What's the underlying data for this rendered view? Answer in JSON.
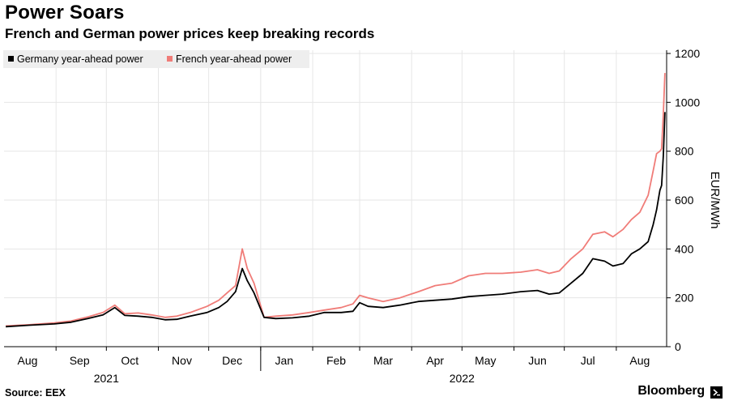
{
  "header": {
    "title": "Power Soars",
    "subtitle": "French and German power prices keep breaking records"
  },
  "footer": {
    "source": "Source: EEX",
    "brand": "Bloomberg"
  },
  "colors": {
    "germany": "#000000",
    "france": "#f07c78",
    "grid": "#e6e6e6",
    "legend_bg": "#eeeeee"
  },
  "chart_data": {
    "type": "line",
    "title": "Power Soars",
    "subtitle": "French and German power prices keep breaking records",
    "ylabel": "EUR/MWh",
    "y_axis_position": "right",
    "ylim": [
      0,
      1200
    ],
    "yticks": [
      0,
      200,
      400,
      600,
      800,
      1000,
      1200
    ],
    "xlim": [
      "2021-08-01",
      "2022-08-31"
    ],
    "x_ticks": [
      {
        "label": "Aug",
        "date": "2021-08-15"
      },
      {
        "label": "Sep",
        "date": "2021-09-15"
      },
      {
        "label": "Oct",
        "date": "2021-10-15"
      },
      {
        "label": "Nov",
        "date": "2021-11-15"
      },
      {
        "label": "Dec",
        "date": "2021-12-15"
      },
      {
        "label": "Jan",
        "date": "2022-01-15"
      },
      {
        "label": "Feb",
        "date": "2022-02-15"
      },
      {
        "label": "Mar",
        "date": "2022-03-15"
      },
      {
        "label": "Apr",
        "date": "2022-04-15"
      },
      {
        "label": "May",
        "date": "2022-05-15"
      },
      {
        "label": "Jun",
        "date": "2022-06-15"
      },
      {
        "label": "Jul",
        "date": "2022-07-15"
      },
      {
        "label": "Aug",
        "date": "2022-08-15"
      }
    ],
    "year_labels": [
      {
        "label": "2021",
        "date": "2021-10-01"
      },
      {
        "label": "2022",
        "date": "2022-05-01"
      }
    ],
    "legend": {
      "position": "top-left"
    },
    "grid": true,
    "series": [
      {
        "name": "Germany year-ahead power",
        "color": "#000000",
        "points": [
          [
            "2021-08-02",
            82
          ],
          [
            "2021-08-16",
            88
          ],
          [
            "2021-08-31",
            93
          ],
          [
            "2021-09-10",
            100
          ],
          [
            "2021-09-20",
            115
          ],
          [
            "2021-09-29",
            130
          ],
          [
            "2021-10-06",
            160
          ],
          [
            "2021-10-12",
            128
          ],
          [
            "2021-10-20",
            125
          ],
          [
            "2021-10-28",
            120
          ],
          [
            "2021-11-05",
            110
          ],
          [
            "2021-11-12",
            112
          ],
          [
            "2021-11-20",
            125
          ],
          [
            "2021-11-30",
            140
          ],
          [
            "2021-12-07",
            160
          ],
          [
            "2021-12-12",
            185
          ],
          [
            "2021-12-17",
            225
          ],
          [
            "2021-12-21",
            320
          ],
          [
            "2021-12-24",
            270
          ],
          [
            "2021-12-28",
            220
          ],
          [
            "2022-01-03",
            120
          ],
          [
            "2022-01-10",
            115
          ],
          [
            "2022-01-20",
            118
          ],
          [
            "2022-01-30",
            125
          ],
          [
            "2022-02-08",
            140
          ],
          [
            "2022-02-18",
            140
          ],
          [
            "2022-02-25",
            145
          ],
          [
            "2022-03-01",
            180
          ],
          [
            "2022-03-06",
            165
          ],
          [
            "2022-03-15",
            160
          ],
          [
            "2022-03-25",
            170
          ],
          [
            "2022-04-05",
            185
          ],
          [
            "2022-04-15",
            190
          ],
          [
            "2022-04-25",
            195
          ],
          [
            "2022-05-05",
            205
          ],
          [
            "2022-05-15",
            210
          ],
          [
            "2022-05-25",
            215
          ],
          [
            "2022-06-05",
            225
          ],
          [
            "2022-06-15",
            230
          ],
          [
            "2022-06-22",
            215
          ],
          [
            "2022-06-28",
            220
          ],
          [
            "2022-07-05",
            260
          ],
          [
            "2022-07-12",
            300
          ],
          [
            "2022-07-18",
            360
          ],
          [
            "2022-07-25",
            350
          ],
          [
            "2022-07-30",
            330
          ],
          [
            "2022-08-05",
            340
          ],
          [
            "2022-08-10",
            380
          ],
          [
            "2022-08-15",
            400
          ],
          [
            "2022-08-20",
            430
          ],
          [
            "2022-08-23",
            500
          ],
          [
            "2022-08-25",
            560
          ],
          [
            "2022-08-27",
            640
          ],
          [
            "2022-08-28",
            660
          ],
          [
            "2022-08-29",
            780
          ],
          [
            "2022-08-30",
            960
          ]
        ]
      },
      {
        "name": "French year-ahead power",
        "color": "#f07c78",
        "points": [
          [
            "2021-08-02",
            85
          ],
          [
            "2021-08-16",
            90
          ],
          [
            "2021-08-31",
            97
          ],
          [
            "2021-09-10",
            105
          ],
          [
            "2021-09-20",
            122
          ],
          [
            "2021-09-29",
            140
          ],
          [
            "2021-10-06",
            170
          ],
          [
            "2021-10-12",
            135
          ],
          [
            "2021-10-20",
            138
          ],
          [
            "2021-10-28",
            130
          ],
          [
            "2021-11-05",
            120
          ],
          [
            "2021-11-12",
            125
          ],
          [
            "2021-11-20",
            140
          ],
          [
            "2021-11-30",
            165
          ],
          [
            "2021-12-07",
            190
          ],
          [
            "2021-12-12",
            220
          ],
          [
            "2021-12-17",
            250
          ],
          [
            "2021-12-21",
            400
          ],
          [
            "2021-12-24",
            320
          ],
          [
            "2021-12-28",
            260
          ],
          [
            "2022-01-03",
            120
          ],
          [
            "2022-01-10",
            125
          ],
          [
            "2022-01-20",
            130
          ],
          [
            "2022-01-30",
            140
          ],
          [
            "2022-02-08",
            150
          ],
          [
            "2022-02-18",
            160
          ],
          [
            "2022-02-25",
            175
          ],
          [
            "2022-03-01",
            210
          ],
          [
            "2022-03-06",
            200
          ],
          [
            "2022-03-15",
            185
          ],
          [
            "2022-03-25",
            200
          ],
          [
            "2022-04-05",
            225
          ],
          [
            "2022-04-15",
            250
          ],
          [
            "2022-04-25",
            260
          ],
          [
            "2022-05-05",
            290
          ],
          [
            "2022-05-15",
            300
          ],
          [
            "2022-05-25",
            300
          ],
          [
            "2022-06-05",
            305
          ],
          [
            "2022-06-15",
            315
          ],
          [
            "2022-06-22",
            300
          ],
          [
            "2022-06-28",
            310
          ],
          [
            "2022-07-05",
            360
          ],
          [
            "2022-07-12",
            400
          ],
          [
            "2022-07-18",
            460
          ],
          [
            "2022-07-25",
            470
          ],
          [
            "2022-07-30",
            450
          ],
          [
            "2022-08-05",
            480
          ],
          [
            "2022-08-10",
            520
          ],
          [
            "2022-08-15",
            550
          ],
          [
            "2022-08-20",
            620
          ],
          [
            "2022-08-23",
            720
          ],
          [
            "2022-08-25",
            790
          ],
          [
            "2022-08-27",
            800
          ],
          [
            "2022-08-28",
            810
          ],
          [
            "2022-08-29",
            950
          ],
          [
            "2022-08-30",
            1120
          ]
        ]
      }
    ]
  }
}
